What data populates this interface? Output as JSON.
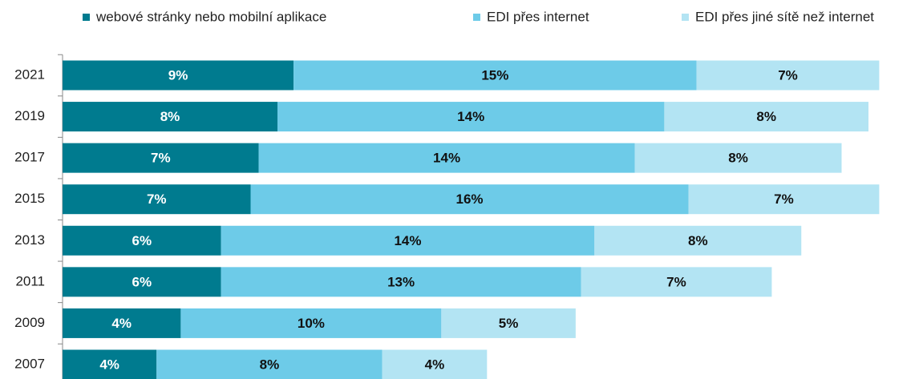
{
  "chart_data": {
    "type": "stacked-bar-horizontal",
    "categories": [
      "2021",
      "2019",
      "2017",
      "2015",
      "2013",
      "2011",
      "2009",
      "2007"
    ],
    "series": [
      {
        "name": "webové stránky nebo mobilní aplikace",
        "color": "#007b8f",
        "values": [
          8.6,
          8.0,
          7.3,
          7.0,
          5.9,
          5.9,
          4.4,
          3.5
        ],
        "value_labels": [
          "9%",
          "8%",
          "7%",
          "7%",
          "6%",
          "6%",
          "4%",
          "4%"
        ]
      },
      {
        "name": "EDI přes internet",
        "color": "#6dcbe8",
        "values": [
          15.0,
          14.4,
          14.0,
          16.3,
          13.9,
          13.4,
          9.7,
          8.4
        ],
        "value_labels": [
          "15%",
          "14%",
          "14%",
          "16%",
          "14%",
          "13%",
          "10%",
          "8%"
        ]
      },
      {
        "name": "EDI přes jiné sítě než internet",
        "color": "#b3e4f3",
        "values": [
          6.8,
          7.6,
          7.7,
          7.1,
          7.7,
          7.1,
          5.0,
          3.9
        ],
        "value_labels": [
          "7%",
          "8%",
          "8%",
          "7%",
          "8%",
          "7%",
          "5%",
          "4%"
        ]
      }
    ],
    "xlim": [
      0,
      32
    ],
    "legend": "top"
  }
}
